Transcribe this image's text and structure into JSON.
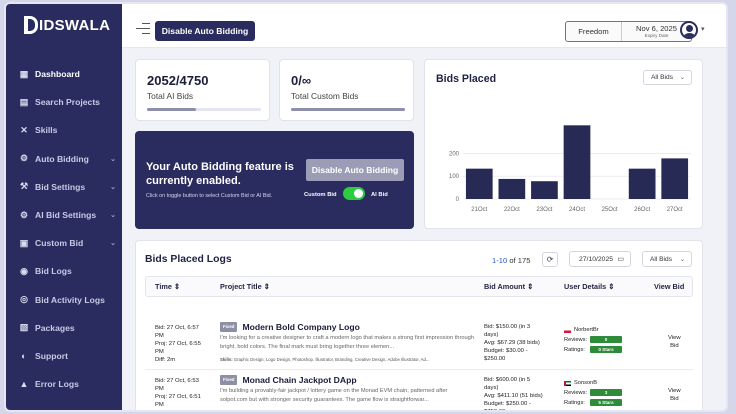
{
  "brand": {
    "logo_rest": "IDSWALA"
  },
  "sidebar": {
    "items": [
      {
        "label": "Dashboard",
        "icon": "grid-icon",
        "active": true,
        "has_chevron": false
      },
      {
        "label": "Search Projects",
        "icon": "search-projects-icon",
        "has_chevron": false
      },
      {
        "label": "Skills",
        "icon": "tools-icon",
        "has_chevron": false
      },
      {
        "label": "Auto Bidding",
        "icon": "gear-icon",
        "has_chevron": true
      },
      {
        "label": "Bid Settings",
        "icon": "gavel-icon",
        "has_chevron": true
      },
      {
        "label": "AI Bid Settings",
        "icon": "ai-gear-icon",
        "has_chevron": true
      },
      {
        "label": "Custom Bid",
        "icon": "custom-bid-icon",
        "has_chevron": true
      },
      {
        "label": "Bid Logs",
        "icon": "bid-logs-icon",
        "has_chevron": false
      },
      {
        "label": "Bid Activity Logs",
        "icon": "activity-icon",
        "has_chevron": false
      },
      {
        "label": "Packages",
        "icon": "package-icon",
        "has_chevron": false
      },
      {
        "label": "Support",
        "icon": "headset-icon",
        "has_chevron": false
      },
      {
        "label": "Error Logs",
        "icon": "warning-icon",
        "has_chevron": false
      }
    ]
  },
  "header": {
    "disable_button": "Disable Auto Bidding",
    "plan_name": "Freedom",
    "expiry_date": "Nov 6, 2025",
    "expiry_label": "Expiry Date"
  },
  "stats": {
    "ai": {
      "value": "2052/4750",
      "label": "Total AI Bids",
      "progress": 0.432
    },
    "custom": {
      "value": "0/∞",
      "label": "Total Custom Bids",
      "progress": 1.0
    }
  },
  "auto_panel": {
    "title": "Your Auto Bidding feature is currently enabled.",
    "hint": "Click on toggle button to select Custom Bid or AI Bid.",
    "button": "Disable Auto Bidding",
    "toggle_left": "Custom Bid",
    "toggle_right": "AI Bid",
    "toggle_on": true
  },
  "bids_chart": {
    "title": "Bids Placed",
    "filter": "All Bids"
  },
  "chart_data": {
    "type": "bar",
    "categories": [
      "21Oct",
      "22Oct",
      "23Oct",
      "24Oct",
      "25Oct",
      "26Oct",
      "27Oct"
    ],
    "values": [
      133,
      88,
      78,
      323,
      0,
      133,
      178
    ],
    "ylim": [
      0,
      320
    ],
    "yticks": [
      0,
      100,
      200
    ],
    "ytick_labels": [
      "0",
      "100",
      "200"
    ],
    "bar_color": "#262a55",
    "grid": "horizontal"
  },
  "logs": {
    "title": "Bids Placed Logs",
    "range": "1-10",
    "of_text": "of",
    "total": "175",
    "date": "27/10/2025",
    "filter": "All Bids",
    "columns": [
      "Time",
      "Project Title",
      "Bid Amount",
      "User Details",
      "View Bid"
    ],
    "rows": [
      {
        "time": [
          "Bid: 27 Oct, 6:57",
          "PM",
          "Proj: 27 Oct, 6:55",
          "PM",
          "Diff: 2m"
        ],
        "tag": "Fixed",
        "title": "Modern Bold Company Logo",
        "desc": "I'm looking for a creative designer to craft a modern logo that makes a strong first impression through bright, bold colors. The final mark must bring together three elemen...",
        "skills_label": "Skills:",
        "skills": "Graphic Design, Logo Design, Photoshop, Illustrator, Branding, Creative Design, Adobe Illustrator, Ad...",
        "bid": [
          "Bid: $150.00 (in 3",
          "days)",
          "Avg: $67.29 (38 bids)",
          "Budget: $30.00 -",
          "$250.00"
        ],
        "user": "NorbertBr",
        "flag": "poland-flag",
        "reviews_label": "Reviews:",
        "reviews": "0",
        "ratings_label": "Ratings:",
        "ratings": "0 Stars",
        "view": [
          "View",
          "Bid"
        ]
      },
      {
        "time": [
          "Bid: 27 Oct, 6:53",
          "PM",
          "Proj: 27 Oct, 6:51",
          "PM",
          "Diff: 2m"
        ],
        "tag": "Fixed",
        "title": "Monad Chain Jackpot DApp",
        "desc": "I'm building a provably-fair jackpot / lottery game on the Monad EVM chain, patterned after solpot.com but with stronger security guarantees. The game flow is straightforwar...",
        "skills_label": "Skills:",
        "skills": "PHP, JavaScript, iPhone, Game Development, Blockchain, dapp, Solidity, Smart Contracts",
        "bid": [
          "Bid: $600.00 (in 5",
          "days)",
          "Avg: $411.10 (51 bids)",
          "Budget: $250.00 -",
          "$750.00"
        ],
        "user": "SonsonB",
        "flag": "uae-flag",
        "reviews_label": "Reviews:",
        "reviews": "3",
        "ratings_label": "Ratings:",
        "ratings": "5 Stars",
        "view": [
          "View",
          "Bid"
        ]
      }
    ]
  }
}
